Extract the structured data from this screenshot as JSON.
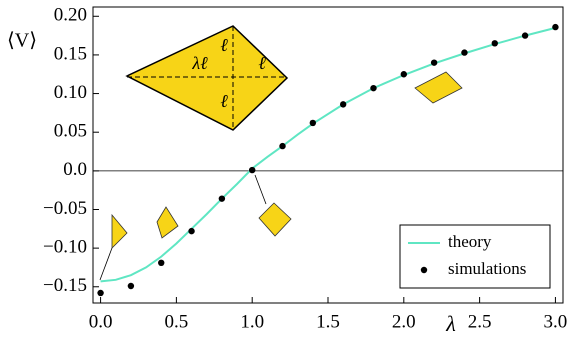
{
  "chart_data": {
    "type": "line",
    "x_label": "λ",
    "y_label": "⟨V⟩",
    "xlim": [
      -0.05,
      3.05
    ],
    "ylim": [
      -0.171,
      0.212
    ],
    "xticks": [
      {
        "value": 0,
        "label": "0.0"
      },
      0.5,
      {
        "value": 1,
        "label": "1.0"
      },
      1.5,
      {
        "value": 2,
        "label": "2.0"
      },
      2.5,
      {
        "value": 3,
        "label": "3.0"
      }
    ],
    "yticks": [
      {
        "value": 0.2,
        "label": "0.20"
      },
      0.15,
      {
        "value": 0.1,
        "label": "0.10"
      },
      0.05,
      {
        "value": 0,
        "label": "0.0"
      },
      {
        "value": -0.05,
        "label": "−0.05"
      },
      {
        "value": -0.1,
        "label": "−0.10"
      },
      {
        "value": -0.15,
        "label": "−0.15"
      }
    ],
    "hline": 0,
    "legend": "lower right",
    "inset_labels": [
      "λℓ",
      "ℓ",
      "ℓ",
      "ℓ"
    ],
    "series": [
      {
        "name": "theory",
        "style": "line",
        "color": "#5fe6c3",
        "x": [
          0,
          0.1,
          0.2,
          0.3,
          0.4,
          0.5,
          0.6,
          0.7,
          0.8,
          0.9,
          1.0,
          1.1,
          1.2,
          1.3,
          1.4,
          1.6,
          1.8,
          2.0,
          2.2,
          2.4,
          2.6,
          2.8,
          3.0
        ],
        "values": [
          -0.143,
          -0.141,
          -0.135,
          -0.125,
          -0.111,
          -0.094,
          -0.075,
          -0.056,
          -0.036,
          -0.017,
          0.003,
          0.018,
          0.032,
          0.047,
          0.061,
          0.086,
          0.107,
          0.124,
          0.139,
          0.152,
          0.164,
          0.175,
          0.185
        ]
      },
      {
        "name": "simulations",
        "style": "points",
        "color": "#000000",
        "x": [
          0,
          0.2,
          0.4,
          0.6,
          0.8,
          1.0,
          1.2,
          1.4,
          1.6,
          1.8,
          2.0,
          2.2,
          2.4,
          2.6,
          2.8,
          3.0
        ],
        "values": [
          -0.158,
          -0.149,
          -0.119,
          -0.078,
          -0.036,
          0.001,
          0.032,
          0.062,
          0.086,
          0.107,
          0.125,
          0.14,
          0.153,
          0.165,
          0.175,
          0.186
        ]
      }
    ]
  }
}
